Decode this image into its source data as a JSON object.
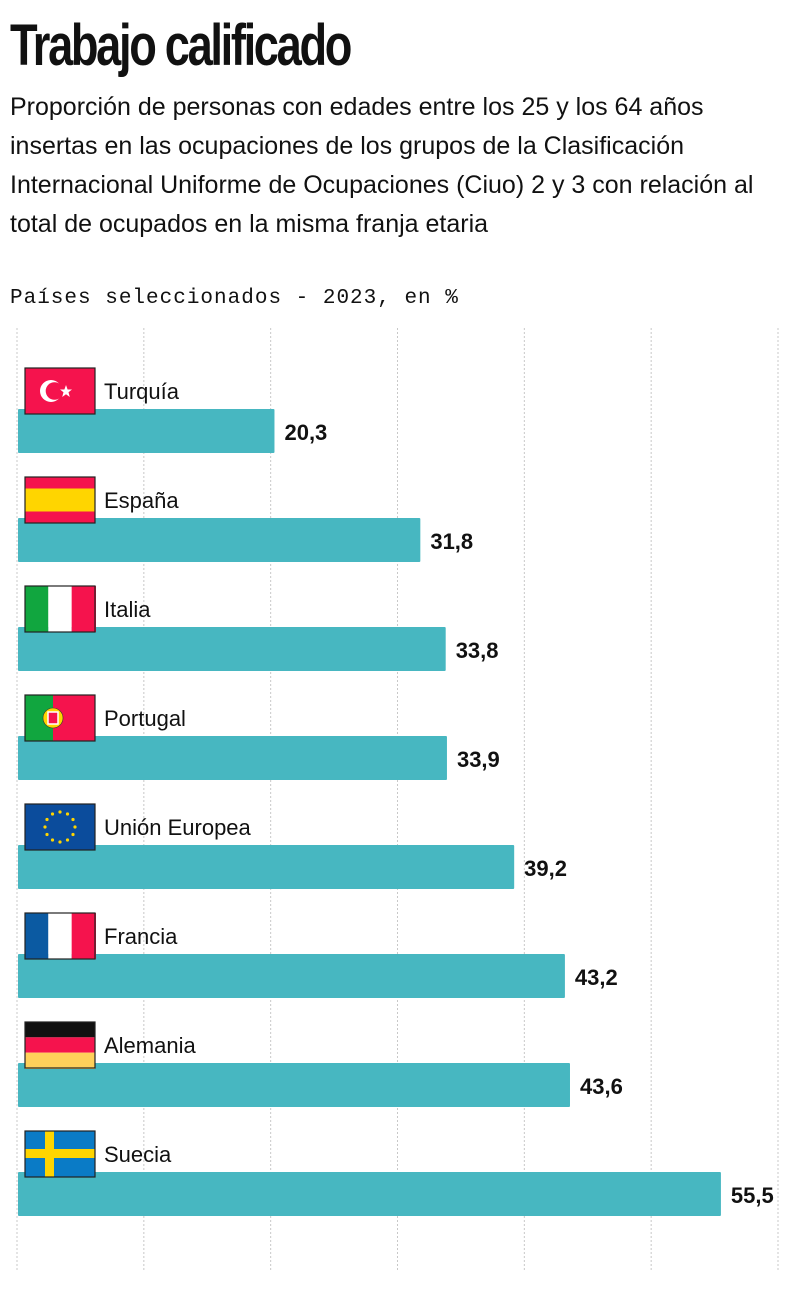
{
  "title": "Trabajo calificado",
  "subtitle": "Proporción de personas con edades entre los 25 y los 64 años insertas en las ocupaciones de los grupos de la Clasificación Internacional Uniforme de Ocupaciones (Ciuo) 2 y 3 con relación al total de ocupados en la misma franja etaria",
  "unit": "Países seleccionados - 2023, en %",
  "colors": {
    "bar": "#47b7c1",
    "grid": "#c8c8c8"
  },
  "chart_data": {
    "type": "bar",
    "orientation": "horizontal",
    "title": "Trabajo calificado",
    "xlim": [
      0,
      60
    ],
    "grid": true,
    "grid_step": 10,
    "categories": [
      "Turquía",
      "España",
      "Italia",
      "Portugal",
      "Unión Europea",
      "Francia",
      "Alemania",
      "Suecia"
    ],
    "values": [
      20.3,
      31.8,
      33.8,
      33.9,
      39.2,
      43.2,
      43.6,
      55.5
    ],
    "value_labels": [
      "20,3",
      "31,8",
      "33,8",
      "33,9",
      "39,2",
      "43,2",
      "43,6",
      "55,5"
    ],
    "flags": [
      "turkey-flag-icon",
      "spain-flag-icon",
      "italy-flag-icon",
      "portugal-flag-icon",
      "eu-flag-icon",
      "france-flag-icon",
      "germany-flag-icon",
      "sweden-flag-icon"
    ]
  }
}
